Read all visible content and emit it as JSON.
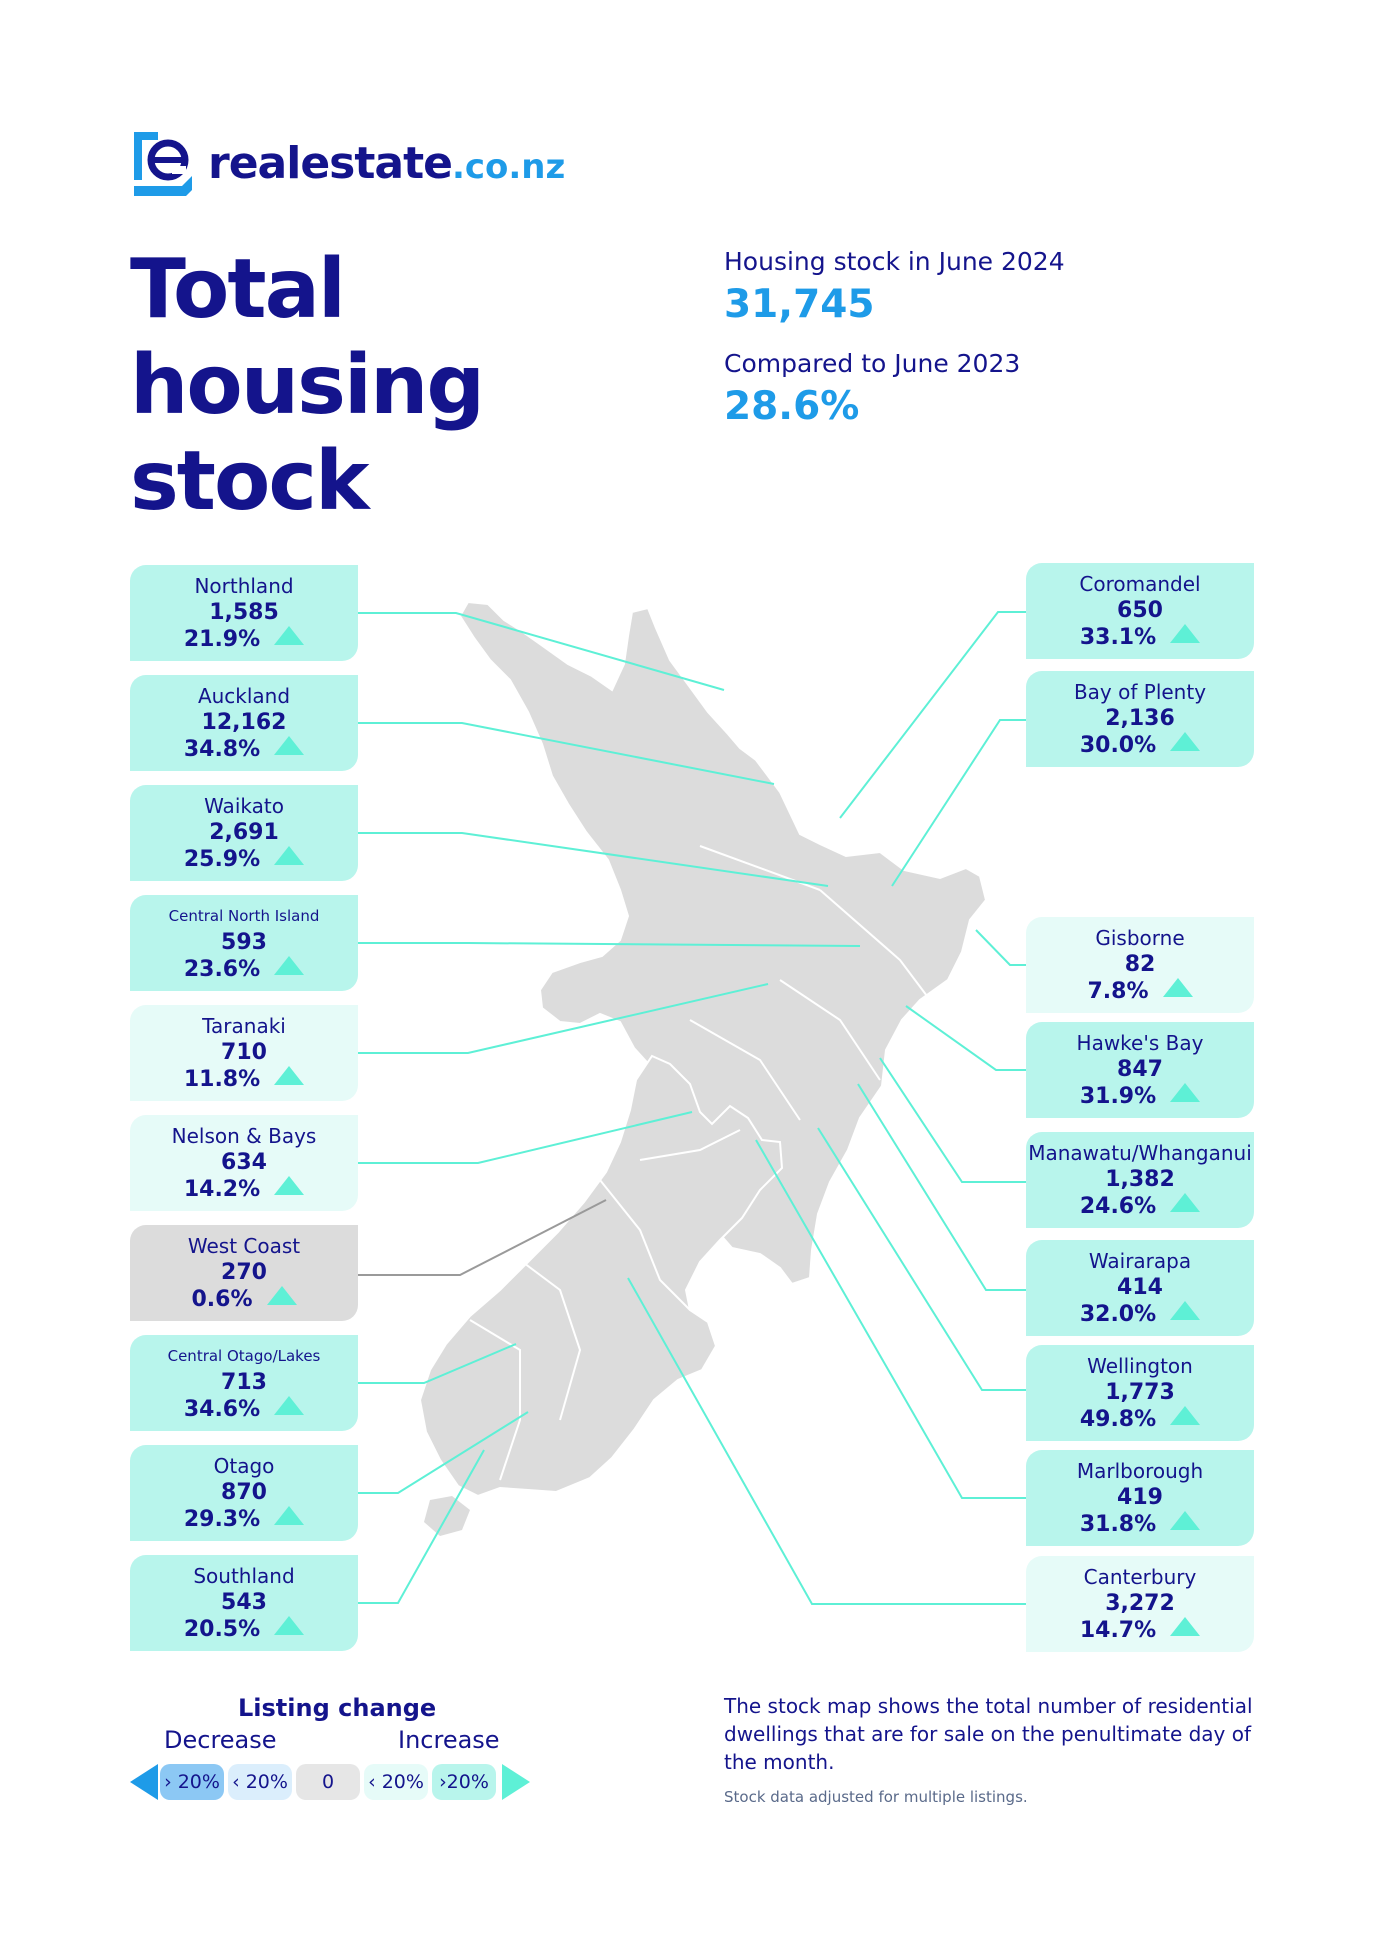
{
  "brand": {
    "name": "realestate",
    "tld": ".co.nz"
  },
  "title": [
    "Total",
    "housing",
    "stock"
  ],
  "summary": {
    "stock_label": "Housing stock in June 2024",
    "stock_value": "31,745",
    "compare_label": "Compared to June 2023",
    "compare_value": "28.6%"
  },
  "regions_left": [
    {
      "name": "Northland",
      "count": "1,585",
      "change": "21.9%",
      "shade": "mid"
    },
    {
      "name": "Auckland",
      "count": "12,162",
      "change": "34.8%",
      "shade": "mid"
    },
    {
      "name": "Waikato",
      "count": "2,691",
      "change": "25.9%",
      "shade": "mid"
    },
    {
      "name": "Central North Island",
      "count": "593",
      "change": "23.6%",
      "shade": "mid"
    },
    {
      "name": "Taranaki",
      "count": "710",
      "change": "11.8%",
      "shade": "light"
    },
    {
      "name": "Nelson & Bays",
      "count": "634",
      "change": "14.2%",
      "shade": "light"
    },
    {
      "name": "West Coast",
      "count": "270",
      "change": "0.6%",
      "shade": "grey"
    },
    {
      "name": "Central Otago/Lakes",
      "count": "713",
      "change": "34.6%",
      "shade": "mid"
    },
    {
      "name": "Otago",
      "count": "870",
      "change": "29.3%",
      "shade": "mid"
    },
    {
      "name": "Southland",
      "count": "543",
      "change": "20.5%",
      "shade": "mid"
    }
  ],
  "regions_right": [
    {
      "name": "Coromandel",
      "count": "650",
      "change": "33.1%",
      "shade": "mid"
    },
    {
      "name": "Bay of Plenty",
      "count": "2,136",
      "change": "30.0%",
      "shade": "mid"
    },
    {
      "name": "Gisborne",
      "count": "82",
      "change": "7.8%",
      "shade": "light"
    },
    {
      "name": "Hawke's Bay",
      "count": "847",
      "change": "31.9%",
      "shade": "mid"
    },
    {
      "name": "Manawatu/Whanganui",
      "count": "1,382",
      "change": "24.6%",
      "shade": "mid"
    },
    {
      "name": "Wairarapa",
      "count": "414",
      "change": "32.0%",
      "shade": "mid"
    },
    {
      "name": "Wellington",
      "count": "1,773",
      "change": "49.8%",
      "shade": "mid"
    },
    {
      "name": "Marlborough",
      "count": "419",
      "change": "31.8%",
      "shade": "mid"
    },
    {
      "name": "Canterbury",
      "count": "3,272",
      "change": "14.7%",
      "shade": "light"
    }
  ],
  "legend": {
    "title": "Listing change",
    "decrease": "Decrease",
    "increase": "Increase",
    "chips": [
      "› 20%",
      "‹ 20%",
      "0",
      "‹ 20%",
      "›20%"
    ]
  },
  "note": "The stock map shows the total number of residential dwellings that are for sale on the penultimate day of the month.",
  "footnote": "Stock data adjusted for multiple listings.",
  "colors": {
    "navy": "#14148c",
    "blue": "#1e9be8",
    "teal": "#5ef0d6",
    "card_mid": "#b8f5ec",
    "card_light": "#e6fbf8",
    "card_grey": "#dcdcdc",
    "land": "#dcdcdc"
  }
}
